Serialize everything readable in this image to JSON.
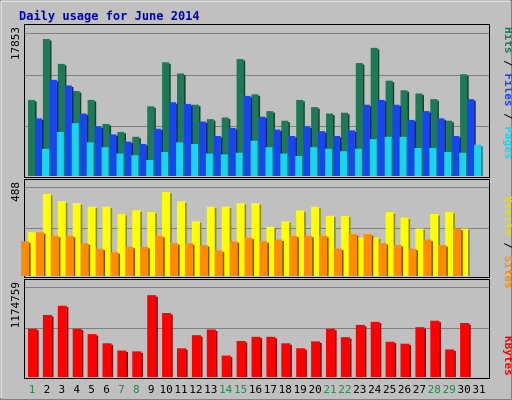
{
  "chart_data": [
    {
      "type": "bar",
      "title": "Daily usage for June 2014",
      "categories": [
        "1",
        "2",
        "3",
        "4",
        "5",
        "6",
        "7",
        "8",
        "9",
        "10",
        "11",
        "12",
        "13",
        "14",
        "15",
        "16",
        "17",
        "18",
        "19",
        "20",
        "21",
        "22",
        "23",
        "24",
        "25",
        "26",
        "27",
        "28",
        "29",
        "30",
        "31"
      ],
      "weekend_days": [
        "1",
        "7",
        "8",
        "14",
        "15",
        "21",
        "22",
        "28",
        "29"
      ],
      "y_tick_label": "17853",
      "ylim": [
        0,
        17853
      ],
      "legend": [
        "Pages",
        "Files",
        "Hits"
      ],
      "series": [
        {
          "name": "Hits",
          "color": "#1e7a56",
          "values": [
            9500,
            17100,
            14000,
            10600,
            9500,
            6500,
            5500,
            4900,
            8700,
            14200,
            12800,
            8900,
            7100,
            7300,
            14600,
            10200,
            8100,
            6900,
            9500,
            8600,
            7800,
            7900,
            14100,
            16000,
            11900,
            10700,
            10300,
            9600,
            6900,
            12700,
            0
          ]
        },
        {
          "name": "Files",
          "color": "#1745f0",
          "values": [
            7200,
            12000,
            11300,
            7800,
            6200,
            5200,
            4300,
            4000,
            5900,
            9200,
            9000,
            6800,
            5000,
            6000,
            10000,
            7400,
            5800,
            5000,
            6200,
            5600,
            5000,
            5700,
            8900,
            9500,
            8900,
            7000,
            8100,
            7200,
            5000,
            9600,
            0
          ]
        },
        {
          "name": "Pages",
          "color": "#1ad4f0",
          "values": [
            3400,
            5500,
            6600,
            4200,
            3600,
            2800,
            2600,
            2000,
            3000,
            4200,
            4000,
            2800,
            2700,
            2900,
            4400,
            3600,
            2800,
            2500,
            3600,
            3400,
            3100,
            3400,
            4600,
            4900,
            4900,
            3500,
            3500,
            3000,
            2900,
            3900,
            0
          ]
        }
      ]
    },
    {
      "type": "bar",
      "categories": [
        "1",
        "2",
        "3",
        "4",
        "5",
        "6",
        "7",
        "8",
        "9",
        "10",
        "11",
        "12",
        "13",
        "14",
        "15",
        "16",
        "17",
        "18",
        "19",
        "20",
        "21",
        "22",
        "23",
        "24",
        "25",
        "26",
        "27",
        "28",
        "29",
        "30",
        "31"
      ],
      "y_tick_label": "488",
      "ylim": [
        0,
        488
      ],
      "legend": [
        "Sites",
        "Visits"
      ],
      "series": [
        {
          "name": "Visits",
          "color": "#ffff00",
          "values": [
            240,
            450,
            410,
            400,
            380,
            380,
            340,
            360,
            350,
            460,
            410,
            300,
            380,
            380,
            400,
            400,
            270,
            300,
            360,
            380,
            330,
            330,
            210,
            210,
            350,
            320,
            260,
            340,
            350,
            260,
            0
          ]
        },
        {
          "name": "Sites",
          "color": "#ff8c00",
          "values": [
            190,
            240,
            220,
            220,
            180,
            150,
            130,
            160,
            160,
            220,
            180,
            180,
            170,
            140,
            190,
            210,
            190,
            200,
            220,
            220,
            220,
            150,
            230,
            230,
            180,
            170,
            150,
            200,
            170,
            260,
            0
          ]
        }
      ]
    },
    {
      "type": "bar",
      "categories": [
        "1",
        "2",
        "3",
        "4",
        "5",
        "6",
        "7",
        "8",
        "9",
        "10",
        "11",
        "12",
        "13",
        "14",
        "15",
        "16",
        "17",
        "18",
        "19",
        "20",
        "21",
        "22",
        "23",
        "24",
        "25",
        "26",
        "27",
        "28",
        "29",
        "30",
        "31"
      ],
      "y_tick_label": "1174759",
      "ylim": [
        0,
        1174759
      ],
      "legend": [
        "KBytes"
      ],
      "series": [
        {
          "name": "KBytes",
          "color": "#ff0000",
          "values": [
            630000,
            810000,
            930000,
            630000,
            560000,
            440000,
            345000,
            335000,
            1068000,
            835000,
            375000,
            546000,
            620000,
            280000,
            470000,
            525000,
            525000,
            440000,
            375000,
            465000,
            630000,
            520000,
            680000,
            720000,
            460000,
            435000,
            650000,
            735000,
            360000,
            705000,
            0
          ]
        }
      ]
    }
  ]
}
